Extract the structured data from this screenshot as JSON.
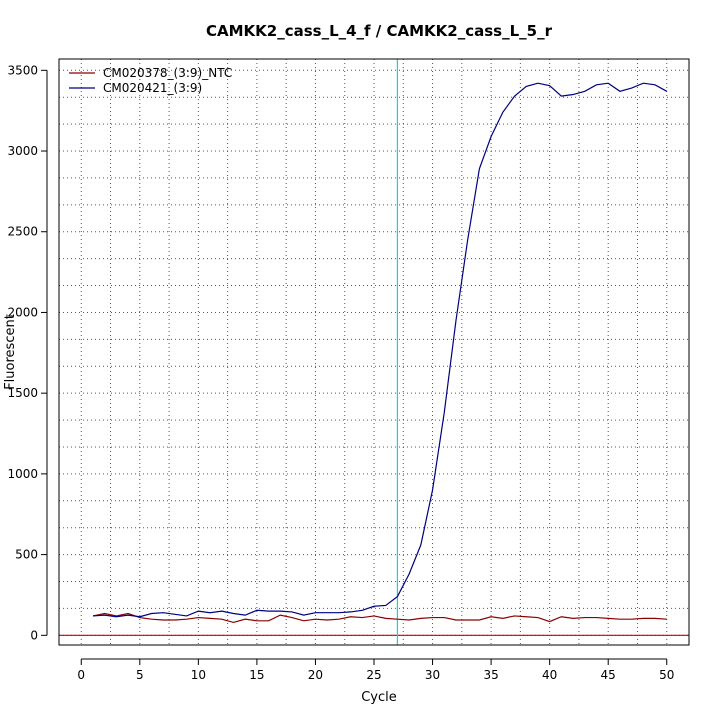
{
  "chart_data": {
    "type": "line",
    "title": "CAMKK2_cass_L_4_f / CAMKK2_cass_L_5_r",
    "xlabel": "Cycle",
    "ylabel": "Fluorescent",
    "xlim": [
      -1.9,
      51.9
    ],
    "ylim": [
      -60,
      3570
    ],
    "xticks": [
      0,
      5,
      10,
      15,
      20,
      25,
      30,
      35,
      40,
      45,
      50
    ],
    "yticks": [
      0,
      500,
      1000,
      1500,
      2000,
      2500,
      3000,
      3500
    ],
    "x_grid": [
      0,
      2.5,
      5,
      7.5,
      10,
      12.5,
      15,
      17.5,
      20,
      22.5,
      25,
      27.5,
      30,
      32.5,
      35,
      37.5,
      40,
      42.5,
      45,
      47.5,
      50
    ],
    "y_grid": [
      0,
      166.67,
      333.33,
      500,
      666.67,
      833.33,
      1000,
      1166.67,
      1333.33,
      1500,
      1666.67,
      1833.33,
      2000,
      2166.67,
      2333.33,
      2500,
      2666.67,
      2833.33,
      3000,
      3166.67,
      3333.33,
      3500
    ],
    "grid": true,
    "legend_position": "top-left",
    "threshold": {
      "y": 0,
      "color": "#cc0000"
    },
    "vline": {
      "x": 27.0,
      "color": "#00d8e8"
    },
    "series": [
      {
        "name": "CM020378_(3:9)_NTC",
        "color": "#8b0000",
        "x": [
          1,
          2,
          3,
          4,
          5,
          6,
          7,
          8,
          9,
          10,
          11,
          12,
          13,
          14,
          15,
          16,
          17,
          18,
          19,
          20,
          21,
          22,
          23,
          24,
          25,
          26,
          27,
          28,
          29,
          30,
          31,
          32,
          33,
          34,
          35,
          36,
          37,
          38,
          39,
          40,
          41,
          42,
          43,
          44,
          45,
          46,
          47,
          48,
          49,
          50
        ],
        "y": [
          120,
          135,
          120,
          135,
          110,
          100,
          95,
          95,
          100,
          110,
          105,
          100,
          80,
          100,
          90,
          90,
          125,
          110,
          90,
          100,
          95,
          100,
          115,
          110,
          120,
          105,
          100,
          95,
          105,
          110,
          110,
          95,
          95,
          95,
          115,
          105,
          120,
          115,
          110,
          85,
          115,
          105,
          110,
          110,
          105,
          100,
          100,
          105,
          105,
          100
        ]
      },
      {
        "name": "CM020421_(3:9)",
        "color": "#000080",
        "x": [
          1,
          2,
          3,
          4,
          5,
          6,
          7,
          8,
          9,
          10,
          11,
          12,
          13,
          14,
          15,
          16,
          17,
          18,
          19,
          20,
          21,
          22,
          23,
          24,
          25,
          26,
          27,
          28,
          29,
          30,
          31,
          32,
          33,
          34,
          35,
          36,
          37,
          38,
          39,
          40,
          41,
          42,
          43,
          44,
          45,
          46,
          47,
          48,
          49,
          50
        ],
        "y": [
          120,
          125,
          115,
          125,
          115,
          135,
          140,
          130,
          120,
          150,
          140,
          150,
          135,
          125,
          155,
          150,
          150,
          145,
          125,
          140,
          140,
          140,
          145,
          155,
          180,
          185,
          240,
          380,
          560,
          900,
          1380,
          1950,
          2450,
          2890,
          3090,
          3240,
          3340,
          3400,
          3420,
          3405,
          3340,
          3350,
          3370,
          3410,
          3420,
          3370,
          3390,
          3420,
          3410,
          3370
        ]
      }
    ]
  }
}
